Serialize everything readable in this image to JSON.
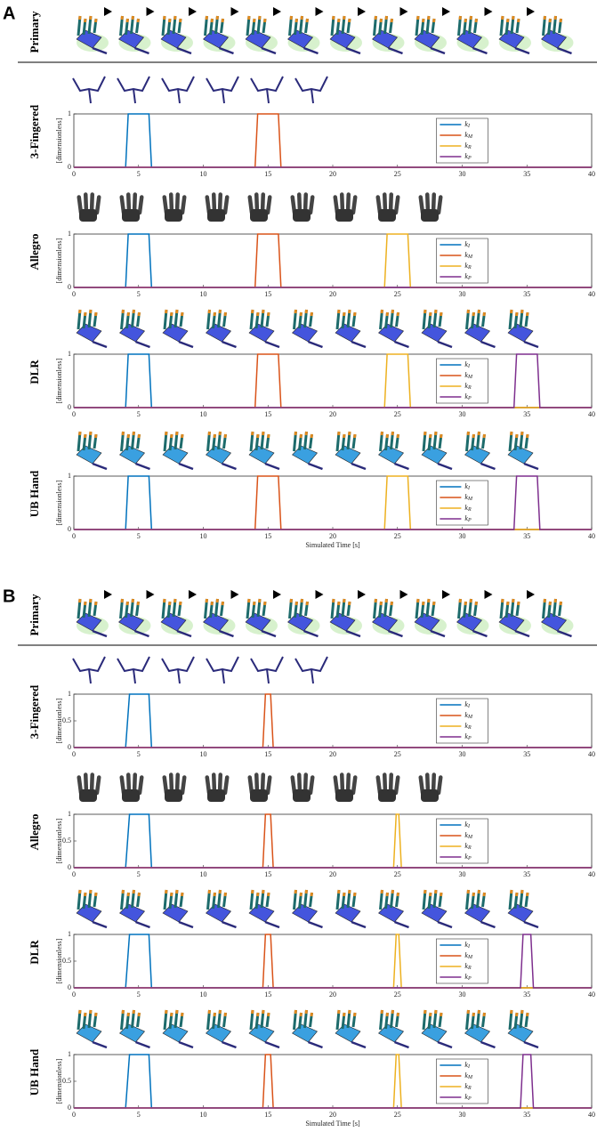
{
  "panels": [
    {
      "label": "A",
      "primary": "Primary"
    },
    {
      "label": "B",
      "primary": "Primary"
    }
  ],
  "chart_data": [
    {
      "type": "line",
      "panel": 0,
      "title": "3-Fingered",
      "ylabel": "[dimensionless]",
      "xlim": [
        0,
        40
      ],
      "ylim": [
        0,
        1
      ],
      "xticks": [
        0,
        5,
        10,
        15,
        20,
        25,
        30,
        35,
        40
      ],
      "yticks": [
        0,
        1
      ],
      "legend": "upper right",
      "series": [
        {
          "name": "kI",
          "color": "#0072BD",
          "x": [
            0,
            4,
            4.2,
            5.8,
            6,
            40
          ],
          "values": [
            0,
            0,
            1,
            1,
            0,
            0
          ]
        },
        {
          "name": "kM",
          "color": "#D95319",
          "x": [
            0,
            14,
            14.2,
            15.8,
            16,
            40
          ],
          "values": [
            0,
            0,
            1,
            1,
            0,
            0
          ]
        },
        {
          "name": "kR",
          "color": "#EDB120",
          "x": [
            0,
            40
          ],
          "values": [
            0,
            0
          ]
        },
        {
          "name": "kP",
          "color": "#7E2F8E",
          "x": [
            0,
            40
          ],
          "values": [
            0,
            0
          ]
        }
      ]
    },
    {
      "type": "line",
      "panel": 0,
      "title": "Allegro",
      "ylabel": "[dimensionless]",
      "xlim": [
        0,
        40
      ],
      "ylim": [
        0,
        1
      ],
      "xticks": [
        0,
        5,
        10,
        15,
        20,
        25,
        30,
        35,
        40
      ],
      "yticks": [
        0,
        1
      ],
      "legend": "upper right",
      "series": [
        {
          "name": "kI",
          "color": "#0072BD",
          "x": [
            0,
            4,
            4.2,
            5.8,
            6,
            40
          ],
          "values": [
            0,
            0,
            1,
            1,
            0,
            0
          ]
        },
        {
          "name": "kM",
          "color": "#D95319",
          "x": [
            0,
            14,
            14.2,
            15.8,
            16,
            40
          ],
          "values": [
            0,
            0,
            1,
            1,
            0,
            0
          ]
        },
        {
          "name": "kR",
          "color": "#EDB120",
          "x": [
            0,
            24,
            24.2,
            25.8,
            26,
            40
          ],
          "values": [
            0,
            0,
            1,
            1,
            0,
            0
          ]
        },
        {
          "name": "kP",
          "color": "#7E2F8E",
          "x": [
            0,
            40
          ],
          "values": [
            0,
            0
          ]
        }
      ]
    },
    {
      "type": "line",
      "panel": 0,
      "title": "DLR",
      "ylabel": "[dimensionless]",
      "xlim": [
        0,
        40
      ],
      "ylim": [
        0,
        1
      ],
      "xticks": [
        0,
        5,
        10,
        15,
        20,
        25,
        30,
        35,
        40
      ],
      "yticks": [
        0,
        1
      ],
      "legend": "upper right",
      "series": [
        {
          "name": "kI",
          "color": "#0072BD",
          "x": [
            0,
            4,
            4.2,
            5.8,
            6,
            40
          ],
          "values": [
            0,
            0,
            1,
            1,
            0,
            0
          ]
        },
        {
          "name": "kM",
          "color": "#D95319",
          "x": [
            0,
            14,
            14.2,
            15.8,
            16,
            40
          ],
          "values": [
            0,
            0,
            1,
            1,
            0,
            0
          ]
        },
        {
          "name": "kR",
          "color": "#EDB120",
          "x": [
            0,
            24,
            24.2,
            25.8,
            26,
            40
          ],
          "values": [
            0,
            0,
            1,
            1,
            0,
            0
          ]
        },
        {
          "name": "kP",
          "color": "#7E2F8E",
          "x": [
            0,
            34,
            34.2,
            35.8,
            36,
            40
          ],
          "values": [
            0,
            0,
            1,
            1,
            0,
            0
          ]
        }
      ]
    },
    {
      "type": "line",
      "panel": 0,
      "title": "UB Hand",
      "ylabel": "[dimensionless]",
      "xlabel": "Simulated Time [s]",
      "xlim": [
        0,
        40
      ],
      "ylim": [
        0,
        1
      ],
      "xticks": [
        0,
        5,
        10,
        15,
        20,
        25,
        30,
        35,
        40
      ],
      "yticks": [
        0,
        1
      ],
      "legend": "upper right",
      "series": [
        {
          "name": "kI",
          "color": "#0072BD",
          "x": [
            0,
            4,
            4.2,
            5.8,
            6,
            40
          ],
          "values": [
            0,
            0,
            1,
            1,
            0,
            0
          ]
        },
        {
          "name": "kM",
          "color": "#D95319",
          "x": [
            0,
            14,
            14.2,
            15.8,
            16,
            40
          ],
          "values": [
            0,
            0,
            1,
            1,
            0,
            0
          ]
        },
        {
          "name": "kR",
          "color": "#EDB120",
          "x": [
            0,
            24,
            24.2,
            25.8,
            26,
            40
          ],
          "values": [
            0,
            0,
            1,
            1,
            0,
            0
          ]
        },
        {
          "name": "kP",
          "color": "#7E2F8E",
          "x": [
            0,
            34,
            34.2,
            35.8,
            36,
            40
          ],
          "values": [
            0,
            0,
            1,
            1,
            0,
            0
          ]
        }
      ]
    },
    {
      "type": "line",
      "panel": 1,
      "title": "3-Fingered",
      "ylabel": "[dimensionless]",
      "xlim": [
        0,
        40
      ],
      "ylim": [
        0,
        1
      ],
      "xticks": [
        0,
        5,
        10,
        15,
        20,
        25,
        30,
        35,
        40
      ],
      "yticks": [
        0,
        0.5,
        1
      ],
      "legend": "upper right",
      "series": [
        {
          "name": "kI",
          "color": "#0072BD",
          "x": [
            0,
            4,
            4.3,
            5.8,
            6,
            40
          ],
          "values": [
            0,
            0,
            1,
            1,
            0,
            0
          ]
        },
        {
          "name": "kM",
          "color": "#D95319",
          "x": [
            0,
            14.6,
            14.8,
            15.2,
            15.4,
            40
          ],
          "values": [
            0,
            0,
            1,
            1,
            0,
            0
          ]
        },
        {
          "name": "kR",
          "color": "#EDB120",
          "x": [
            0,
            40
          ],
          "values": [
            0,
            0
          ]
        },
        {
          "name": "kP",
          "color": "#7E2F8E",
          "x": [
            0,
            40
          ],
          "values": [
            0,
            0
          ]
        }
      ]
    },
    {
      "type": "line",
      "panel": 1,
      "title": "Allegro",
      "ylabel": "[dimensionless]",
      "xlim": [
        0,
        40
      ],
      "ylim": [
        0,
        1
      ],
      "xticks": [
        0,
        5,
        10,
        15,
        20,
        25,
        30,
        35,
        40
      ],
      "yticks": [
        0,
        0.5,
        1
      ],
      "legend": "upper right",
      "series": [
        {
          "name": "kI",
          "color": "#0072BD",
          "x": [
            0,
            4,
            4.3,
            5.8,
            6,
            40
          ],
          "values": [
            0,
            0,
            1,
            1,
            0,
            0
          ]
        },
        {
          "name": "kM",
          "color": "#D95319",
          "x": [
            0,
            14.6,
            14.8,
            15.2,
            15.4,
            40
          ],
          "values": [
            0,
            0,
            1,
            1,
            0,
            0
          ]
        },
        {
          "name": "kR",
          "color": "#EDB120",
          "x": [
            0,
            24.7,
            24.9,
            25.1,
            25.3,
            40
          ],
          "values": [
            0,
            0,
            1,
            1,
            0,
            0
          ]
        },
        {
          "name": "kP",
          "color": "#7E2F8E",
          "x": [
            0,
            40
          ],
          "values": [
            0,
            0
          ]
        }
      ]
    },
    {
      "type": "line",
      "panel": 1,
      "title": "DLR",
      "ylabel": "[dimensionless]",
      "xlim": [
        0,
        40
      ],
      "ylim": [
        0,
        1
      ],
      "xticks": [
        0,
        5,
        10,
        15,
        20,
        25,
        30,
        35,
        40
      ],
      "yticks": [
        0,
        0.5,
        1
      ],
      "legend": "upper right",
      "series": [
        {
          "name": "kI",
          "color": "#0072BD",
          "x": [
            0,
            4,
            4.3,
            5.8,
            6,
            40
          ],
          "values": [
            0,
            0,
            1,
            1,
            0,
            0
          ]
        },
        {
          "name": "kM",
          "color": "#D95319",
          "x": [
            0,
            14.6,
            14.8,
            15.2,
            15.4,
            40
          ],
          "values": [
            0,
            0,
            1,
            1,
            0,
            0
          ]
        },
        {
          "name": "kR",
          "color": "#EDB120",
          "x": [
            0,
            24.7,
            24.9,
            25.1,
            25.3,
            40
          ],
          "values": [
            0,
            0,
            1,
            1,
            0,
            0
          ]
        },
        {
          "name": "kP",
          "color": "#7E2F8E",
          "x": [
            0,
            34.5,
            34.7,
            35.3,
            35.5,
            40
          ],
          "values": [
            0,
            0,
            1,
            1,
            0,
            0
          ]
        }
      ]
    },
    {
      "type": "line",
      "panel": 1,
      "title": "UB Hand",
      "ylabel": "[dimensionless]",
      "xlabel": "Simulated Time [s]",
      "xlim": [
        0,
        40
      ],
      "ylim": [
        0,
        1
      ],
      "xticks": [
        0,
        5,
        10,
        15,
        20,
        25,
        30,
        35,
        40
      ],
      "yticks": [
        0,
        0.5,
        1
      ],
      "legend": "upper right",
      "series": [
        {
          "name": "kI",
          "color": "#0072BD",
          "x": [
            0,
            4,
            4.3,
            5.8,
            6,
            40
          ],
          "values": [
            0,
            0,
            1,
            1,
            0,
            0
          ]
        },
        {
          "name": "kM",
          "color": "#D95319",
          "x": [
            0,
            14.6,
            14.8,
            15.2,
            15.4,
            40
          ],
          "values": [
            0,
            0,
            1,
            1,
            0,
            0
          ]
        },
        {
          "name": "kR",
          "color": "#EDB120",
          "x": [
            0,
            24.7,
            24.9,
            25.1,
            25.3,
            40
          ],
          "values": [
            0,
            0,
            1,
            1,
            0,
            0
          ]
        },
        {
          "name": "kP",
          "color": "#7E2F8E",
          "x": [
            0,
            34.5,
            34.7,
            35.3,
            35.5,
            40
          ],
          "values": [
            0,
            0,
            1,
            1,
            0,
            0
          ]
        }
      ]
    }
  ]
}
